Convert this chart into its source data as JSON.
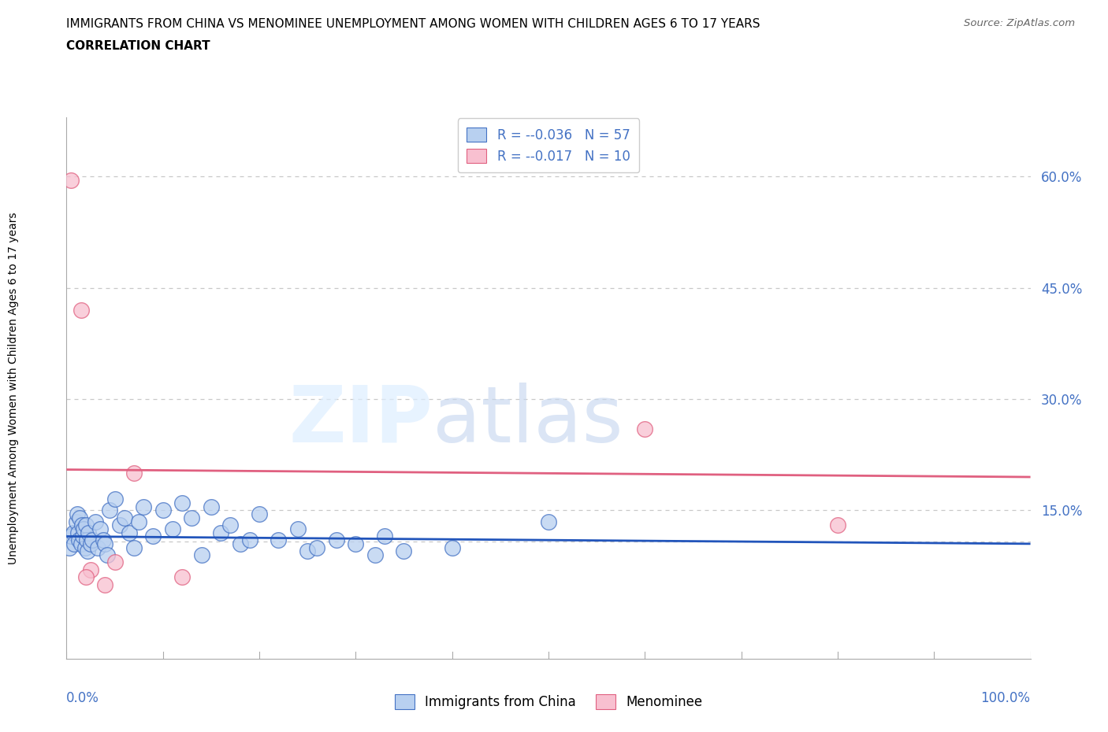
{
  "title": "IMMIGRANTS FROM CHINA VS MENOMINEE UNEMPLOYMENT AMONG WOMEN WITH CHILDREN AGES 6 TO 17 YEARS",
  "subtitle": "CORRELATION CHART",
  "source": "Source: ZipAtlas.com",
  "ylabel": "Unemployment Among Women with Children Ages 6 to 17 years",
  "xlim": [
    0,
    100
  ],
  "ylim": [
    -5,
    68
  ],
  "yticks": [
    15,
    30,
    45,
    60
  ],
  "ytick_labels": [
    "15.0%",
    "30.0%",
    "45.0%",
    "60.0%"
  ],
  "legend_r1": "-0.036",
  "legend_n1": "57",
  "legend_r2": "-0.017",
  "legend_n2": "10",
  "color_blue_fill": "#B8D0F0",
  "color_blue_edge": "#4472C4",
  "color_pink_fill": "#F8C0D0",
  "color_pink_edge": "#E06080",
  "color_blue_line": "#2255BB",
  "color_pink_line": "#E06080",
  "color_axis_blue": "#4472C4",
  "color_grid": "#C8C8C8",
  "blue_scatter_x": [
    0.3,
    0.5,
    0.7,
    0.8,
    1.0,
    1.1,
    1.2,
    1.3,
    1.4,
    1.5,
    1.6,
    1.7,
    1.8,
    1.9,
    2.0,
    2.1,
    2.2,
    2.3,
    2.5,
    2.7,
    3.0,
    3.2,
    3.5,
    3.8,
    4.0,
    4.2,
    4.5,
    5.0,
    5.5,
    6.0,
    6.5,
    7.0,
    7.5,
    8.0,
    9.0,
    10.0,
    11.0,
    12.0,
    13.0,
    14.0,
    15.0,
    16.0,
    17.0,
    18.0,
    19.0,
    20.0,
    22.0,
    24.0,
    25.0,
    26.0,
    28.0,
    30.0,
    32.0,
    33.0,
    35.0,
    40.0,
    50.0
  ],
  "blue_scatter_y": [
    10.0,
    11.5,
    12.0,
    10.5,
    13.5,
    14.5,
    12.0,
    11.0,
    14.0,
    10.5,
    13.0,
    11.5,
    12.5,
    10.0,
    13.0,
    11.0,
    9.5,
    12.0,
    10.5,
    11.0,
    13.5,
    10.0,
    12.5,
    11.0,
    10.5,
    9.0,
    15.0,
    16.5,
    13.0,
    14.0,
    12.0,
    10.0,
    13.5,
    15.5,
    11.5,
    15.0,
    12.5,
    16.0,
    14.0,
    9.0,
    15.5,
    12.0,
    13.0,
    10.5,
    11.0,
    14.5,
    11.0,
    12.5,
    9.5,
    10.0,
    11.0,
    10.5,
    9.0,
    11.5,
    9.5,
    10.0,
    13.5
  ],
  "pink_scatter_x": [
    0.5,
    1.5,
    2.5,
    4.0,
    7.0,
    60.0,
    80.0,
    2.0,
    5.0,
    12.0
  ],
  "pink_scatter_y": [
    59.5,
    42.0,
    7.0,
    5.0,
    20.0,
    26.0,
    13.0,
    6.0,
    8.0,
    6.0
  ],
  "blue_trend_x0": 0,
  "blue_trend_x1": 100,
  "blue_trend_y0": 11.5,
  "blue_trend_y1": 10.5,
  "pink_trend_x0": 0,
  "pink_trend_x1": 100,
  "pink_trend_y0": 20.5,
  "pink_trend_y1": 19.5,
  "dashed_line_y": 10.8
}
